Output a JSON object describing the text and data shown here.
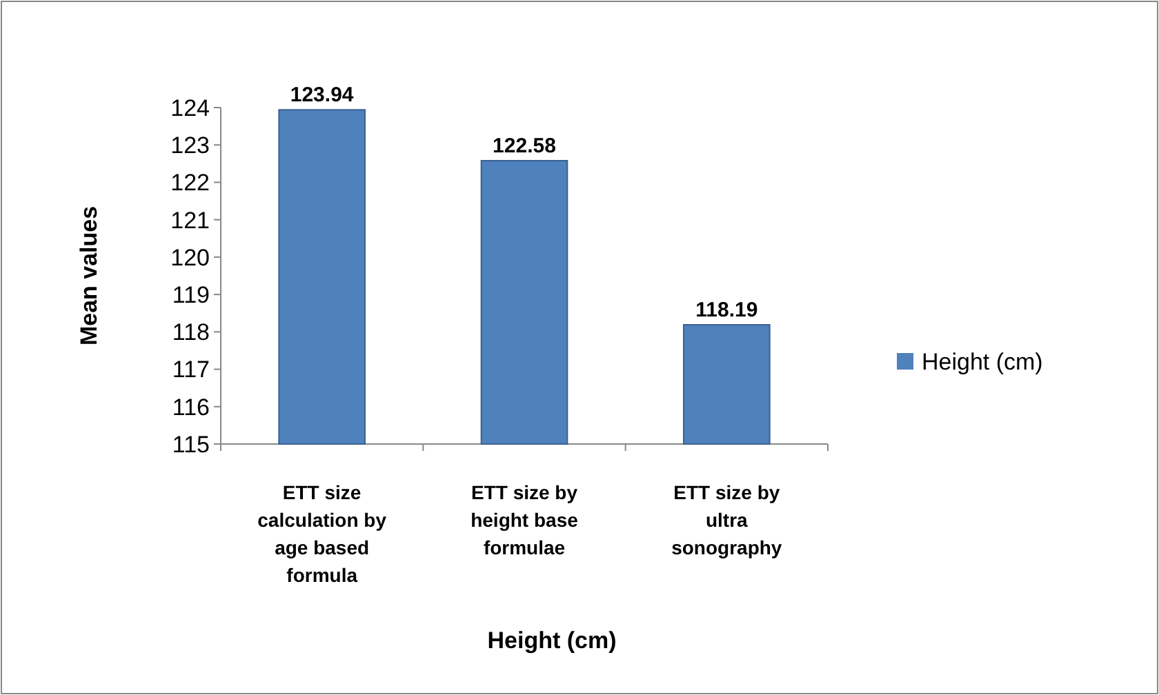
{
  "chart_data": {
    "type": "bar",
    "categories": [
      "ETT size calculation by age based formula",
      "ETT size by height base formulae",
      "ETT size by ultra sonography"
    ],
    "series": [
      {
        "name": "Height (cm)",
        "color": "#4f81bd",
        "values": [
          123.94,
          122.58,
          118.19
        ]
      }
    ],
    "xlabel": "Height (cm)",
    "ylabel": "Mean values",
    "ylim": [
      115,
      124
    ],
    "yticks": [
      115,
      116,
      117,
      118,
      119,
      120,
      121,
      122,
      123,
      124
    ],
    "data_labels": true,
    "legend": "right",
    "grid": false
  }
}
